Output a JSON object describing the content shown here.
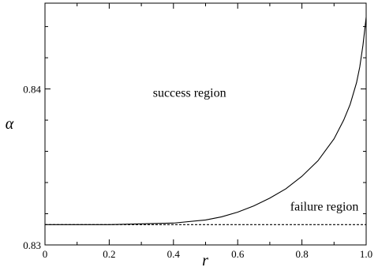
{
  "chart_data": {
    "type": "line",
    "title": "",
    "xlabel": "r",
    "ylabel": "α",
    "xlim": [
      0,
      1
    ],
    "ylim": [
      0.83,
      0.8455
    ],
    "x_ticks": [
      "0",
      "0.2",
      "0.4",
      "0.6",
      "0.8",
      "1.0"
    ],
    "y_ticks": [
      "0.83",
      "0.84"
    ],
    "grid": false,
    "series": [
      {
        "style": "solid",
        "x": [
          0,
          0.1,
          0.2,
          0.3,
          0.4,
          0.5,
          0.55,
          0.6,
          0.65,
          0.7,
          0.75,
          0.8,
          0.85,
          0.9,
          0.93,
          0.95,
          0.97,
          0.98,
          0.99,
          1.0
        ],
        "y": [
          0.8313,
          0.8313,
          0.8313,
          0.83135,
          0.8314,
          0.8316,
          0.8318,
          0.8321,
          0.8325,
          0.833,
          0.8336,
          0.8344,
          0.8354,
          0.8368,
          0.838,
          0.839,
          0.8404,
          0.8414,
          0.8428,
          0.8446
        ]
      },
      {
        "style": "dashed",
        "x": [
          0,
          1.0
        ],
        "y": [
          0.8313,
          0.8313
        ]
      }
    ],
    "annotations": [
      {
        "text": "success region",
        "x": 0.45,
        "y": 0.8395
      },
      {
        "text": "failure region",
        "x": 0.87,
        "y": 0.8322
      }
    ]
  }
}
